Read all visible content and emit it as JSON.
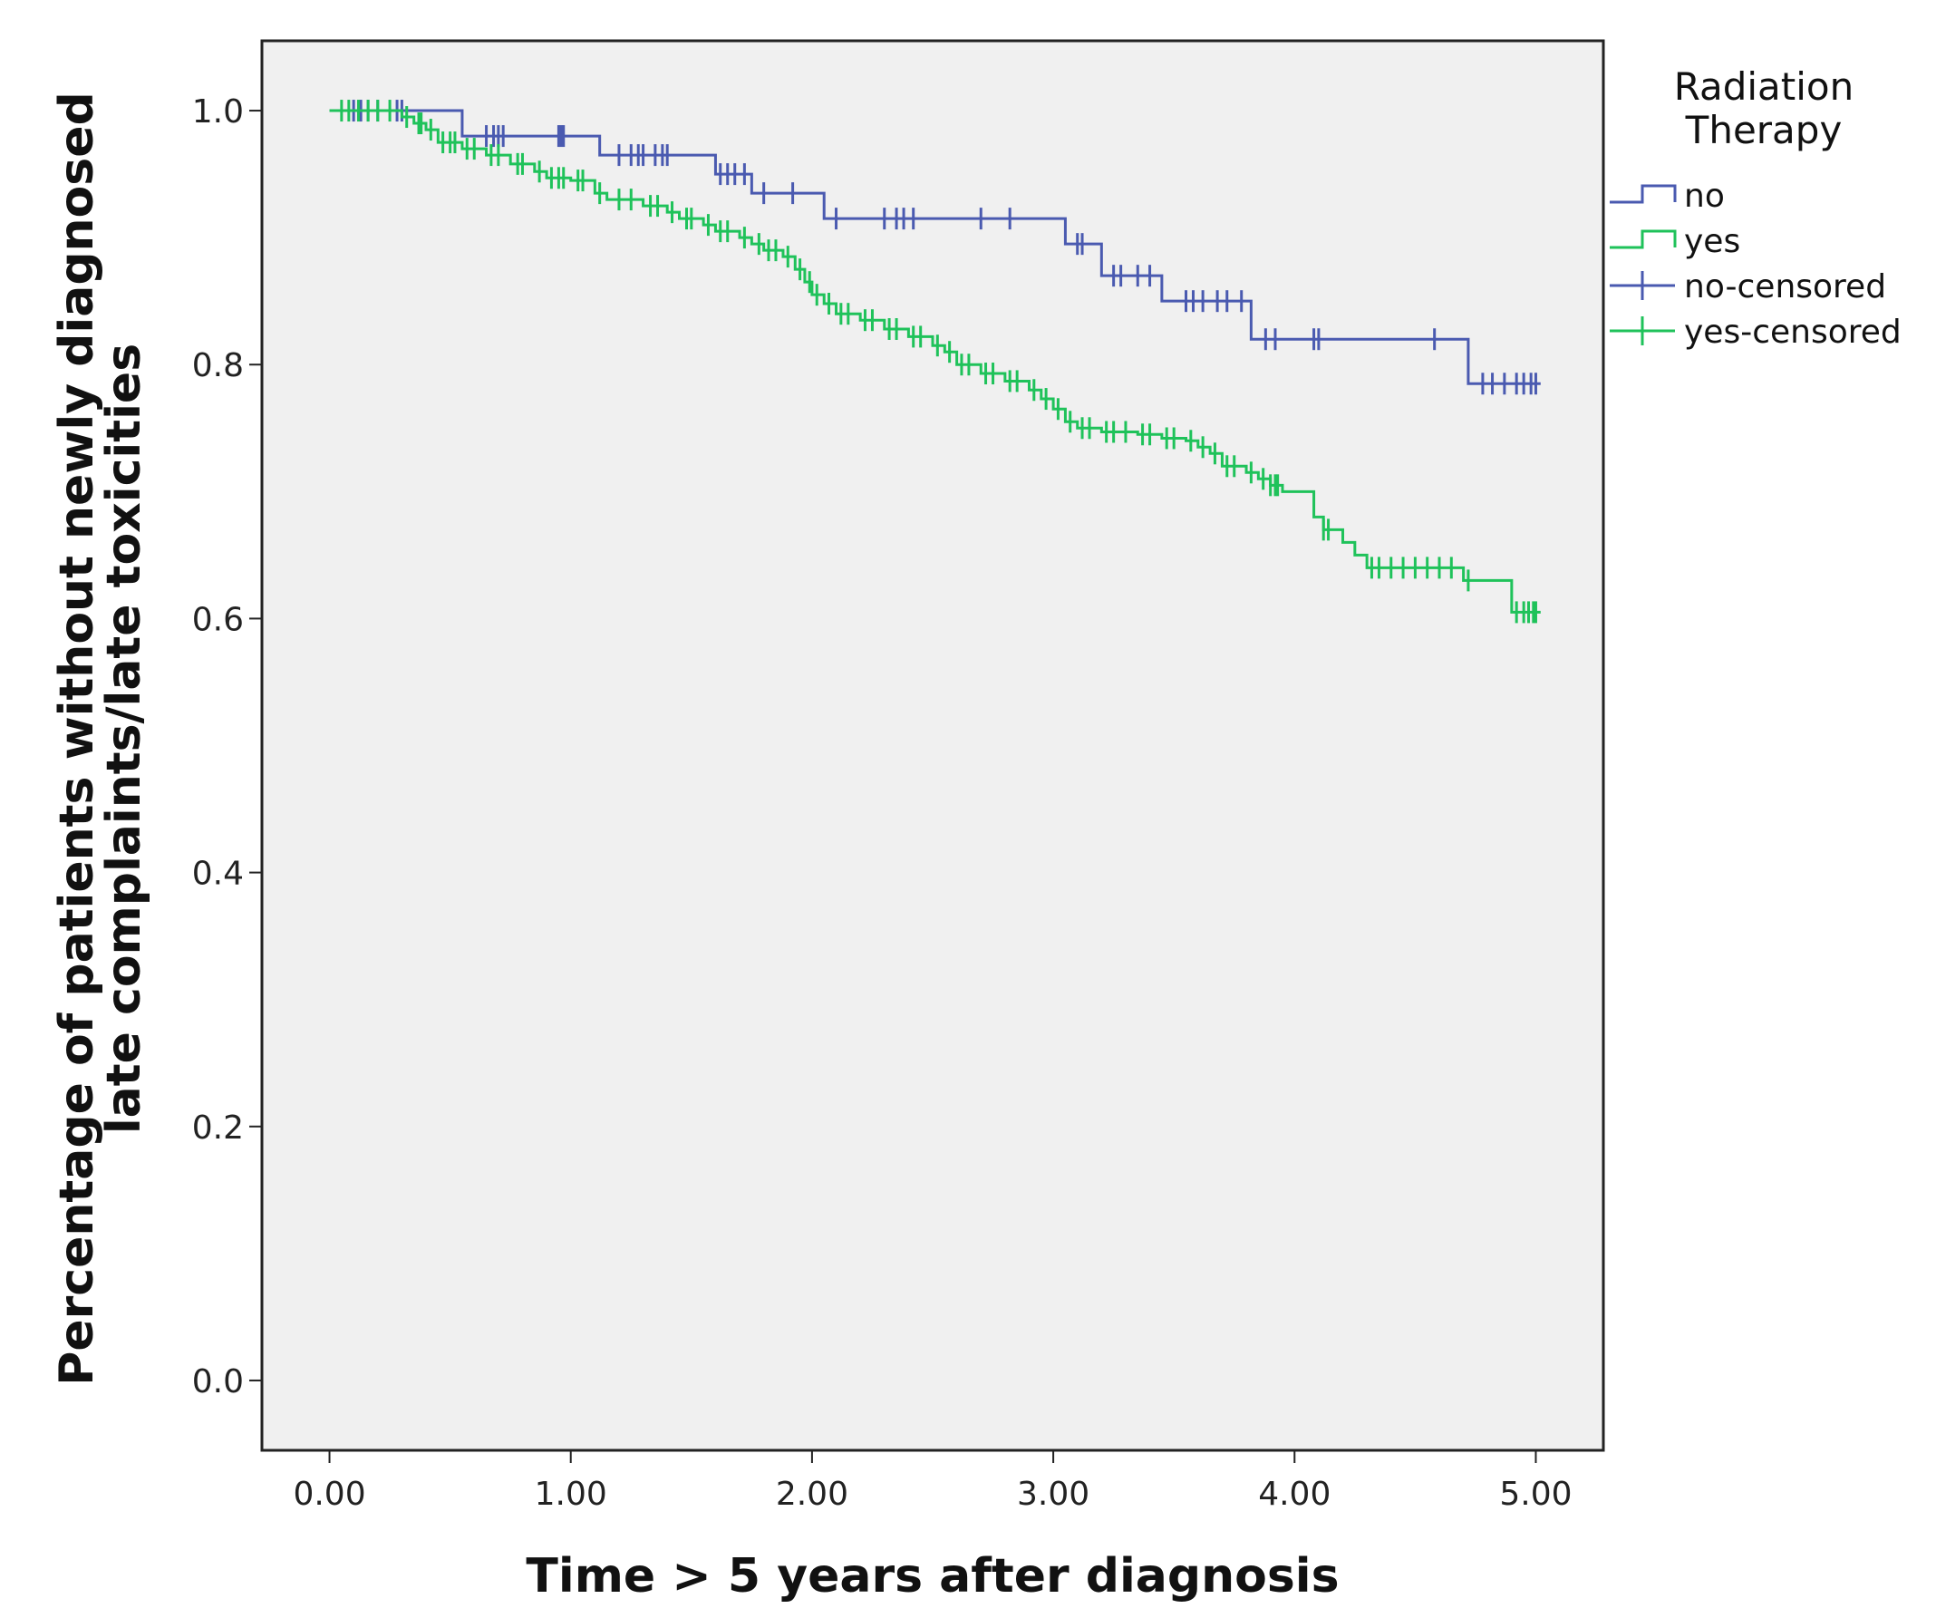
{
  "chart_data": {
    "type": "line",
    "subtype": "kaplan-meier step",
    "title": "",
    "xlabel": "Time > 5 years after diagnosis",
    "ylabel_lines": [
      "Percentage of patients without newly diagnosed",
      "late complaints/late toxicities"
    ],
    "xlim": [
      -0.28,
      5.28
    ],
    "ylim": [
      -0.055,
      1.055
    ],
    "x_ticks": [
      0,
      1,
      2,
      3,
      4,
      5
    ],
    "x_tick_labels": [
      "0.00",
      "1.00",
      "2.00",
      "3.00",
      "4.00",
      "5.00"
    ],
    "y_ticks": [
      0,
      0.2,
      0.4,
      0.6,
      0.8,
      1.0
    ],
    "y_tick_labels": [
      "0.0",
      "0.2",
      "0.4",
      "0.6",
      "0.8",
      "1.0"
    ],
    "grid": false,
    "legend": {
      "title_lines": [
        "Radiation",
        "Therapy"
      ],
      "placement": "right",
      "entries": [
        {
          "label": "no",
          "kind": "step",
          "series": "no"
        },
        {
          "label": "yes",
          "kind": "step",
          "series": "yes"
        },
        {
          "label": "no-censored",
          "kind": "censor",
          "series": "no"
        },
        {
          "label": "yes-censored",
          "kind": "censor",
          "series": "yes"
        }
      ]
    },
    "series": [
      {
        "name": "no",
        "color": "#4a5ab0",
        "steps": [
          [
            0.0,
            1.0
          ],
          [
            0.55,
            0.98
          ],
          [
            1.12,
            0.965
          ],
          [
            1.6,
            0.95
          ],
          [
            1.75,
            0.935
          ],
          [
            2.05,
            0.915
          ],
          [
            3.05,
            0.895
          ],
          [
            3.2,
            0.87
          ],
          [
            3.45,
            0.85
          ],
          [
            3.82,
            0.82
          ],
          [
            4.72,
            0.785
          ],
          [
            5.02,
            0.785
          ]
        ],
        "censored": [
          [
            0.1,
            1.0
          ],
          [
            0.13,
            1.0
          ],
          [
            0.16,
            1.0
          ],
          [
            0.2,
            1.0
          ],
          [
            0.28,
            1.0
          ],
          [
            0.3,
            1.0
          ],
          [
            0.65,
            0.98
          ],
          [
            0.68,
            0.98
          ],
          [
            0.7,
            0.98
          ],
          [
            0.72,
            0.98
          ],
          [
            0.95,
            0.98
          ],
          [
            0.96,
            0.98
          ],
          [
            0.97,
            0.98
          ],
          [
            1.2,
            0.965
          ],
          [
            1.25,
            0.965
          ],
          [
            1.28,
            0.965
          ],
          [
            1.3,
            0.965
          ],
          [
            1.35,
            0.965
          ],
          [
            1.38,
            0.965
          ],
          [
            1.4,
            0.965
          ],
          [
            1.62,
            0.95
          ],
          [
            1.65,
            0.95
          ],
          [
            1.68,
            0.95
          ],
          [
            1.72,
            0.95
          ],
          [
            1.8,
            0.935
          ],
          [
            1.92,
            0.935
          ],
          [
            2.1,
            0.915
          ],
          [
            2.3,
            0.915
          ],
          [
            2.35,
            0.915
          ],
          [
            2.38,
            0.915
          ],
          [
            2.42,
            0.915
          ],
          [
            2.7,
            0.915
          ],
          [
            2.82,
            0.915
          ],
          [
            3.1,
            0.895
          ],
          [
            3.12,
            0.895
          ],
          [
            3.25,
            0.87
          ],
          [
            3.28,
            0.87
          ],
          [
            3.35,
            0.87
          ],
          [
            3.4,
            0.87
          ],
          [
            3.55,
            0.85
          ],
          [
            3.58,
            0.85
          ],
          [
            3.62,
            0.85
          ],
          [
            3.68,
            0.85
          ],
          [
            3.72,
            0.85
          ],
          [
            3.78,
            0.85
          ],
          [
            3.88,
            0.82
          ],
          [
            3.92,
            0.82
          ],
          [
            4.08,
            0.82
          ],
          [
            4.1,
            0.82
          ],
          [
            4.58,
            0.82
          ],
          [
            4.78,
            0.785
          ],
          [
            4.82,
            0.785
          ],
          [
            4.87,
            0.785
          ],
          [
            4.92,
            0.785
          ],
          [
            4.95,
            0.785
          ],
          [
            4.98,
            0.785
          ],
          [
            5.0,
            0.785
          ]
        ]
      },
      {
        "name": "yes",
        "color": "#1fc25a",
        "steps": [
          [
            0.0,
            1.0
          ],
          [
            0.3,
            0.995
          ],
          [
            0.35,
            0.99
          ],
          [
            0.4,
            0.985
          ],
          [
            0.45,
            0.975
          ],
          [
            0.55,
            0.97
          ],
          [
            0.65,
            0.965
          ],
          [
            0.75,
            0.958
          ],
          [
            0.85,
            0.952
          ],
          [
            0.9,
            0.947
          ],
          [
            1.0,
            0.945
          ],
          [
            1.1,
            0.935
          ],
          [
            1.15,
            0.93
          ],
          [
            1.3,
            0.925
          ],
          [
            1.4,
            0.92
          ],
          [
            1.45,
            0.915
          ],
          [
            1.55,
            0.91
          ],
          [
            1.6,
            0.905
          ],
          [
            1.7,
            0.9
          ],
          [
            1.75,
            0.895
          ],
          [
            1.8,
            0.89
          ],
          [
            1.88,
            0.885
          ],
          [
            1.93,
            0.875
          ],
          [
            1.97,
            0.865
          ],
          [
            2.0,
            0.855
          ],
          [
            2.05,
            0.848
          ],
          [
            2.1,
            0.84
          ],
          [
            2.2,
            0.835
          ],
          [
            2.3,
            0.828
          ],
          [
            2.4,
            0.822
          ],
          [
            2.5,
            0.815
          ],
          [
            2.55,
            0.81
          ],
          [
            2.6,
            0.8
          ],
          [
            2.7,
            0.793
          ],
          [
            2.8,
            0.787
          ],
          [
            2.9,
            0.78
          ],
          [
            2.95,
            0.773
          ],
          [
            3.0,
            0.765
          ],
          [
            3.05,
            0.755
          ],
          [
            3.1,
            0.75
          ],
          [
            3.2,
            0.747
          ],
          [
            3.35,
            0.745
          ],
          [
            3.45,
            0.742
          ],
          [
            3.55,
            0.74
          ],
          [
            3.6,
            0.735
          ],
          [
            3.65,
            0.73
          ],
          [
            3.7,
            0.72
          ],
          [
            3.8,
            0.715
          ],
          [
            3.85,
            0.71
          ],
          [
            3.9,
            0.705
          ],
          [
            3.95,
            0.7
          ],
          [
            4.08,
            0.68
          ],
          [
            4.12,
            0.67
          ],
          [
            4.2,
            0.66
          ],
          [
            4.25,
            0.65
          ],
          [
            4.3,
            0.64
          ],
          [
            4.7,
            0.63
          ],
          [
            4.9,
            0.605
          ],
          [
            5.02,
            0.605
          ]
        ],
        "censored": [
          [
            0.05,
            1.0
          ],
          [
            0.08,
            1.0
          ],
          [
            0.12,
            1.0
          ],
          [
            0.16,
            1.0
          ],
          [
            0.2,
            1.0
          ],
          [
            0.25,
            1.0
          ],
          [
            0.32,
            0.995
          ],
          [
            0.37,
            0.99
          ],
          [
            0.38,
            0.99
          ],
          [
            0.42,
            0.985
          ],
          [
            0.47,
            0.975
          ],
          [
            0.5,
            0.975
          ],
          [
            0.52,
            0.975
          ],
          [
            0.57,
            0.97
          ],
          [
            0.6,
            0.97
          ],
          [
            0.67,
            0.965
          ],
          [
            0.7,
            0.965
          ],
          [
            0.78,
            0.958
          ],
          [
            0.8,
            0.958
          ],
          [
            0.87,
            0.952
          ],
          [
            0.92,
            0.947
          ],
          [
            0.95,
            0.947
          ],
          [
            0.97,
            0.947
          ],
          [
            1.03,
            0.945
          ],
          [
            1.05,
            0.945
          ],
          [
            1.12,
            0.935
          ],
          [
            1.2,
            0.93
          ],
          [
            1.25,
            0.93
          ],
          [
            1.33,
            0.925
          ],
          [
            1.36,
            0.925
          ],
          [
            1.42,
            0.92
          ],
          [
            1.48,
            0.915
          ],
          [
            1.5,
            0.915
          ],
          [
            1.57,
            0.91
          ],
          [
            1.62,
            0.905
          ],
          [
            1.65,
            0.905
          ],
          [
            1.72,
            0.9
          ],
          [
            1.78,
            0.895
          ],
          [
            1.82,
            0.89
          ],
          [
            1.85,
            0.89
          ],
          [
            1.9,
            0.885
          ],
          [
            1.95,
            0.875
          ],
          [
            1.99,
            0.865
          ],
          [
            2.02,
            0.855
          ],
          [
            2.07,
            0.848
          ],
          [
            2.12,
            0.84
          ],
          [
            2.15,
            0.84
          ],
          [
            2.22,
            0.835
          ],
          [
            2.25,
            0.835
          ],
          [
            2.32,
            0.828
          ],
          [
            2.35,
            0.828
          ],
          [
            2.42,
            0.822
          ],
          [
            2.45,
            0.822
          ],
          [
            2.52,
            0.815
          ],
          [
            2.57,
            0.81
          ],
          [
            2.62,
            0.8
          ],
          [
            2.65,
            0.8
          ],
          [
            2.72,
            0.793
          ],
          [
            2.75,
            0.793
          ],
          [
            2.82,
            0.787
          ],
          [
            2.85,
            0.787
          ],
          [
            2.92,
            0.78
          ],
          [
            2.97,
            0.773
          ],
          [
            3.02,
            0.765
          ],
          [
            3.07,
            0.755
          ],
          [
            3.12,
            0.75
          ],
          [
            3.15,
            0.75
          ],
          [
            3.22,
            0.747
          ],
          [
            3.25,
            0.747
          ],
          [
            3.3,
            0.747
          ],
          [
            3.37,
            0.745
          ],
          [
            3.4,
            0.745
          ],
          [
            3.47,
            0.742
          ],
          [
            3.5,
            0.742
          ],
          [
            3.57,
            0.74
          ],
          [
            3.62,
            0.735
          ],
          [
            3.67,
            0.73
          ],
          [
            3.72,
            0.72
          ],
          [
            3.75,
            0.72
          ],
          [
            3.82,
            0.715
          ],
          [
            3.87,
            0.71
          ],
          [
            3.9,
            0.705
          ],
          [
            3.92,
            0.705
          ],
          [
            3.93,
            0.705
          ],
          [
            4.12,
            0.67
          ],
          [
            4.14,
            0.67
          ],
          [
            4.32,
            0.64
          ],
          [
            4.35,
            0.64
          ],
          [
            4.4,
            0.64
          ],
          [
            4.45,
            0.64
          ],
          [
            4.5,
            0.64
          ],
          [
            4.55,
            0.64
          ],
          [
            4.6,
            0.64
          ],
          [
            4.65,
            0.64
          ],
          [
            4.72,
            0.63
          ],
          [
            4.92,
            0.605
          ],
          [
            4.95,
            0.605
          ],
          [
            4.97,
            0.605
          ],
          [
            4.99,
            0.605
          ],
          [
            5.0,
            0.605
          ]
        ]
      }
    ]
  }
}
